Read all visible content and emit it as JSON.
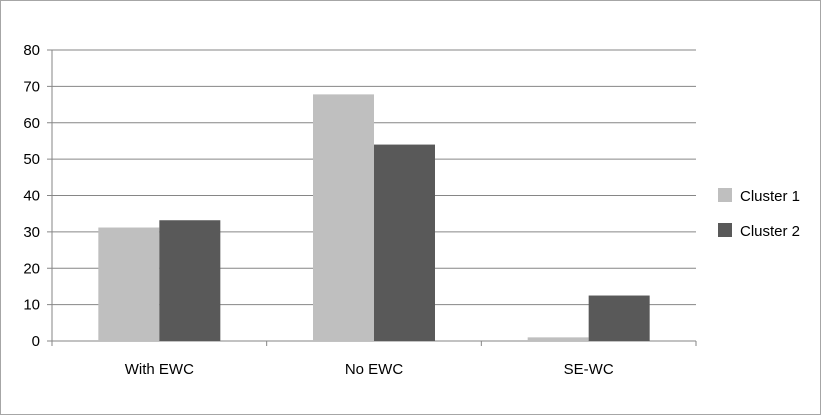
{
  "chart_data": {
    "type": "bar",
    "categories": [
      "With EWC",
      "No EWC",
      "SE-WC"
    ],
    "series": [
      {
        "name": "Cluster 1",
        "values": [
          31.2,
          67.8,
          1.0
        ],
        "color": "#bfbfbf"
      },
      {
        "name": "Cluster 2",
        "values": [
          33.2,
          54.0,
          12.5
        ],
        "color": "#595959"
      }
    ],
    "ylim": [
      0,
      80
    ],
    "yticks": [
      "0",
      "10",
      "20",
      "30",
      "40",
      "50",
      "60",
      "70",
      "80"
    ],
    "grid": true,
    "legend": "right",
    "title": "",
    "xlabel": "",
    "ylabel": ""
  }
}
